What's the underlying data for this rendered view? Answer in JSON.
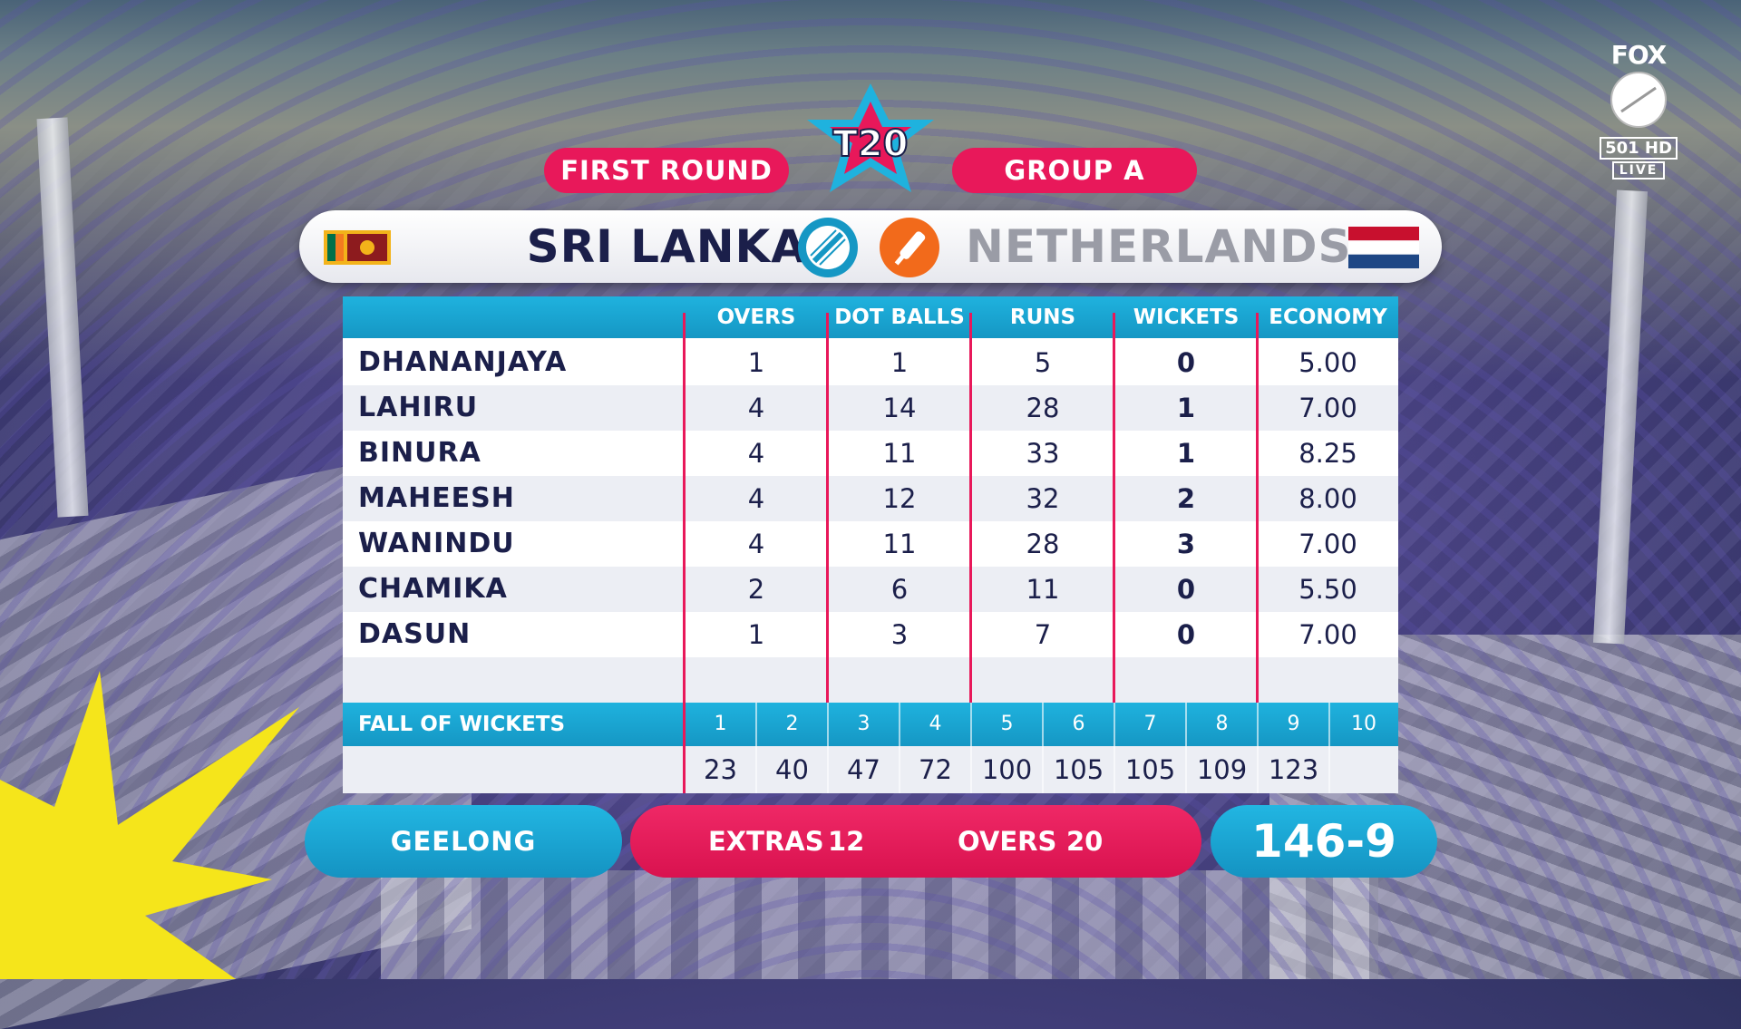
{
  "header": {
    "round": "FIRST ROUND",
    "group": "GROUP A",
    "logo_text": "T20"
  },
  "teams": {
    "bowling": "SRI LANKA",
    "batting": "NETHERLANDS"
  },
  "table": {
    "columns": [
      "OVERS",
      "DOT BALLS",
      "RUNS",
      "WICKETS",
      "ECONOMY"
    ],
    "rows": [
      {
        "name": "DHANANJAYA",
        "overs": "1",
        "dots": "1",
        "runs": "5",
        "wickets": "0",
        "economy": "5.00"
      },
      {
        "name": "LAHIRU",
        "overs": "4",
        "dots": "14",
        "runs": "28",
        "wickets": "1",
        "economy": "7.00"
      },
      {
        "name": "BINURA",
        "overs": "4",
        "dots": "11",
        "runs": "33",
        "wickets": "1",
        "economy": "8.25"
      },
      {
        "name": "MAHEESH",
        "overs": "4",
        "dots": "12",
        "runs": "32",
        "wickets": "2",
        "economy": "8.00"
      },
      {
        "name": "WANINDU",
        "overs": "4",
        "dots": "11",
        "runs": "28",
        "wickets": "3",
        "economy": "7.00"
      },
      {
        "name": "CHAMIKA",
        "overs": "2",
        "dots": "6",
        "runs": "11",
        "wickets": "0",
        "economy": "5.50"
      },
      {
        "name": "DASUN",
        "overs": "1",
        "dots": "3",
        "runs": "7",
        "wickets": "0",
        "economy": "7.00"
      }
    ]
  },
  "fall_of_wickets": {
    "label": "FALL OF WICKETS",
    "numbers": [
      "1",
      "2",
      "3",
      "4",
      "5",
      "6",
      "7",
      "8",
      "9",
      "10"
    ],
    "scores": [
      "23",
      "40",
      "47",
      "72",
      "100",
      "105",
      "105",
      "109",
      "123",
      ""
    ]
  },
  "footer": {
    "venue": "GEELONG",
    "extras_label": "EXTRAS",
    "extras_value": "12",
    "overs_label": "OVERS",
    "overs_value": "20",
    "score": "146-9"
  },
  "broadcaster": {
    "brand": "FOX",
    "channel": "501 HD",
    "live": "LIVE"
  },
  "colors": {
    "pink": "#e8185a",
    "cyan": "#1fb2de",
    "navy": "#1b1f4a"
  }
}
